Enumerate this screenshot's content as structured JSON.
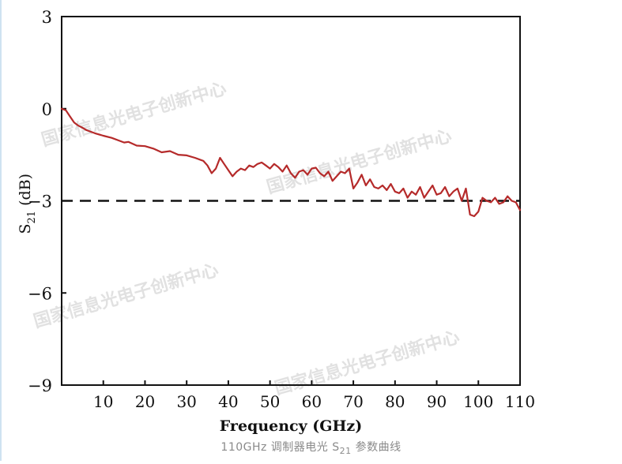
{
  "colors": {
    "curve": "#b52a2a",
    "axis": "#111111",
    "reference": "#111111",
    "watermark": "#dcdcdc",
    "caption": "#8a8a8a"
  },
  "watermark_text": "国家信息光电子创新中心",
  "caption": {
    "prefix": "110GHz 调制器电光 S",
    "subscript": "21",
    "suffix": " 参数曲线"
  },
  "chart_data": {
    "type": "line",
    "title": "",
    "xlabel": "Frequency (GHz)",
    "ylabel_main": "S",
    "ylabel_sub": "21",
    "ylabel_unit": " (dB)",
    "xlim": [
      0,
      110
    ],
    "ylim": [
      -9,
      3
    ],
    "xticks": [
      10,
      20,
      30,
      40,
      50,
      60,
      70,
      80,
      90,
      100,
      110
    ],
    "yticks": [
      3,
      0,
      -3,
      -6,
      -9
    ],
    "ytick_labels": [
      "3",
      "0",
      "−3",
      "−6",
      "−9"
    ],
    "grid": false,
    "legend": "none",
    "reference_line": {
      "y": -3,
      "style": "dashed"
    },
    "series": [
      {
        "name": "S21",
        "x": [
          0,
          1,
          2,
          3,
          4,
          5,
          6,
          8,
          10,
          12,
          14,
          15,
          16,
          18,
          20,
          22,
          24,
          26,
          28,
          30,
          32,
          34,
          35,
          36,
          37,
          38,
          39,
          40,
          41,
          42,
          43,
          44,
          45,
          46,
          47,
          48,
          49,
          50,
          51,
          52,
          53,
          54,
          55,
          56,
          57,
          58,
          59,
          60,
          61,
          62,
          63,
          64,
          65,
          66,
          67,
          68,
          69,
          70,
          71,
          72,
          73,
          74,
          75,
          76,
          77,
          78,
          79,
          80,
          81,
          82,
          83,
          84,
          85,
          86,
          87,
          88,
          89,
          90,
          91,
          92,
          93,
          94,
          95,
          96,
          97,
          98,
          99,
          100,
          101,
          102,
          103,
          104,
          105,
          106,
          107,
          108,
          109,
          110
        ],
        "y": [
          0,
          -0.05,
          -0.25,
          -0.45,
          -0.55,
          -0.62,
          -0.7,
          -0.8,
          -0.88,
          -0.95,
          -1.05,
          -1.1,
          -1.08,
          -1.2,
          -1.22,
          -1.3,
          -1.42,
          -1.38,
          -1.5,
          -1.52,
          -1.6,
          -1.7,
          -1.85,
          -2.1,
          -1.95,
          -1.6,
          -1.8,
          -2.0,
          -2.2,
          -2.05,
          -1.95,
          -2.0,
          -1.85,
          -1.9,
          -1.8,
          -1.75,
          -1.85,
          -1.95,
          -1.8,
          -1.9,
          -2.05,
          -1.85,
          -2.1,
          -2.25,
          -2.05,
          -2.0,
          -2.15,
          -1.95,
          -1.92,
          -2.1,
          -2.2,
          -2.05,
          -2.35,
          -2.2,
          -2.05,
          -2.1,
          -1.95,
          -2.6,
          -2.4,
          -2.15,
          -2.5,
          -2.3,
          -2.55,
          -2.6,
          -2.5,
          -2.65,
          -2.45,
          -2.7,
          -2.75,
          -2.6,
          -2.9,
          -2.7,
          -2.8,
          -2.55,
          -2.9,
          -2.7,
          -2.5,
          -2.8,
          -2.75,
          -2.55,
          -2.85,
          -2.7,
          -2.6,
          -3.0,
          -2.6,
          -3.45,
          -3.5,
          -3.35,
          -2.9,
          -3.0,
          -3.05,
          -2.9,
          -3.1,
          -3.05,
          -2.85,
          -3.0,
          -3.05,
          -3.3
        ]
      }
    ]
  }
}
